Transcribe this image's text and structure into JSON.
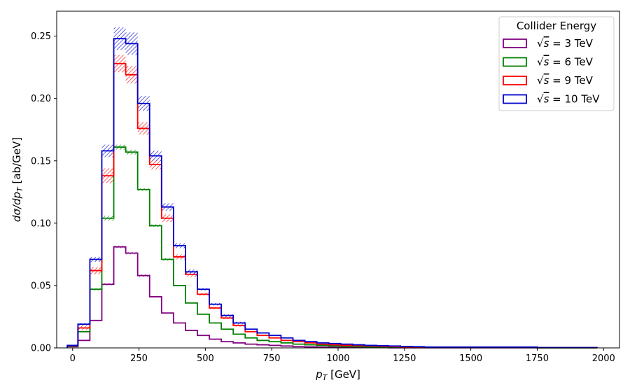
{
  "chart_data": {
    "type": "line",
    "step": "histogram",
    "xlabel": "p_T [GeV]",
    "ylabel": "dσ/dp_T [ab/GeV]",
    "xlim": [
      -60,
      2060
    ],
    "ylim": [
      0,
      0.27
    ],
    "xticks": [
      0,
      250,
      500,
      750,
      1000,
      1250,
      1500,
      1750,
      2000
    ],
    "yticks": [
      0.0,
      0.05,
      0.1,
      0.15,
      0.2,
      0.25
    ],
    "xtick_labels": [
      "0",
      "250",
      "500",
      "750",
      "1000",
      "1250",
      "1500",
      "1750",
      "2000"
    ],
    "ytick_labels": [
      "0.00",
      "0.05",
      "0.10",
      "0.15",
      "0.20",
      "0.25"
    ],
    "grid": false,
    "legend": {
      "title": "Collider Energy",
      "placement": "top-right"
    },
    "bin_edges": [
      -20,
      20,
      65,
      110,
      155,
      200,
      245,
      290,
      335,
      380,
      425,
      470,
      515,
      560,
      605,
      650,
      695,
      740,
      785,
      830,
      875,
      920,
      965,
      1010,
      1055,
      1100,
      1145,
      1190,
      1235,
      1280,
      1325,
      1750,
      1975
    ],
    "series": [
      {
        "name": "√s = 3 TeV",
        "sqrt_s": "3",
        "color": "#800080",
        "values": [
          0.001,
          0.006,
          0.022,
          0.051,
          0.081,
          0.076,
          0.058,
          0.041,
          0.028,
          0.02,
          0.014,
          0.01,
          0.007,
          0.005,
          0.004,
          0.003,
          0.0025,
          0.002,
          0.0015,
          0.001,
          0.0008,
          0.0006,
          0.0005,
          0.0004,
          0.0003,
          0.0002,
          0.0002,
          0.0001,
          0.0001,
          0.0001,
          5e-05,
          2e-05
        ],
        "unc": [
          0,
          0,
          0,
          0.001,
          0.001,
          0.001,
          0.001,
          0,
          0,
          0,
          0,
          0,
          0,
          0,
          0,
          0,
          0,
          0,
          0,
          0,
          0,
          0,
          0,
          0,
          0,
          0,
          0,
          0,
          0,
          0,
          0,
          0
        ]
      },
      {
        "name": "√s = 6 TeV",
        "sqrt_s": "6",
        "color": "#008000",
        "values": [
          0.0015,
          0.013,
          0.047,
          0.104,
          0.161,
          0.157,
          0.127,
          0.098,
          0.071,
          0.05,
          0.036,
          0.027,
          0.02,
          0.015,
          0.011,
          0.008,
          0.006,
          0.005,
          0.004,
          0.003,
          0.0025,
          0.002,
          0.0015,
          0.0012,
          0.001,
          0.0008,
          0.0006,
          0.0005,
          0.0004,
          0.0003,
          0.0002,
          0.0001
        ],
        "unc": [
          0,
          0.0005,
          0.001,
          0.002,
          0.002,
          0.002,
          0.001,
          0.001,
          0.001,
          0,
          0,
          0,
          0,
          0,
          0,
          0,
          0,
          0,
          0,
          0,
          0,
          0,
          0,
          0,
          0,
          0,
          0,
          0,
          0,
          0,
          0,
          0
        ]
      },
      {
        "name": "√s = 9 TeV",
        "sqrt_s": "9",
        "color": "#ff0000",
        "values": [
          0.0018,
          0.016,
          0.062,
          0.138,
          0.228,
          0.219,
          0.176,
          0.147,
          0.104,
          0.073,
          0.059,
          0.043,
          0.032,
          0.024,
          0.018,
          0.013,
          0.01,
          0.008,
          0.006,
          0.005,
          0.004,
          0.003,
          0.0025,
          0.002,
          0.0018,
          0.0015,
          0.0012,
          0.001,
          0.0008,
          0.0006,
          0.0004,
          0.0002
        ],
        "unc": [
          0,
          0.002,
          0.003,
          0.006,
          0.007,
          0.007,
          0.005,
          0.004,
          0.003,
          0.002,
          0.002,
          0.001,
          0.001,
          0.001,
          0.001,
          0,
          0,
          0,
          0,
          0,
          0,
          0,
          0,
          0,
          0,
          0,
          0,
          0,
          0,
          0,
          0,
          0
        ]
      },
      {
        "name": "√s = 10 TeV",
        "sqrt_s": "10",
        "color": "#0000cd",
        "values": [
          0.002,
          0.019,
          0.071,
          0.158,
          0.248,
          0.244,
          0.196,
          0.154,
          0.113,
          0.082,
          0.061,
          0.047,
          0.035,
          0.026,
          0.02,
          0.015,
          0.012,
          0.01,
          0.008,
          0.006,
          0.005,
          0.004,
          0.0035,
          0.003,
          0.0025,
          0.002,
          0.0018,
          0.0015,
          0.0012,
          0.001,
          0.0007,
          0.0003
        ],
        "unc": [
          0,
          0.001,
          0.002,
          0.005,
          0.009,
          0.009,
          0.006,
          0.004,
          0.003,
          0.002,
          0.002,
          0.001,
          0.001,
          0.001,
          0.001,
          0,
          0,
          0,
          0,
          0,
          0,
          0,
          0,
          0,
          0,
          0,
          0,
          0,
          0,
          0,
          0,
          0
        ]
      }
    ]
  },
  "legend_labels": {
    "radical": "√",
    "s": "s",
    "eq": " = ",
    "unit": " TeV"
  }
}
